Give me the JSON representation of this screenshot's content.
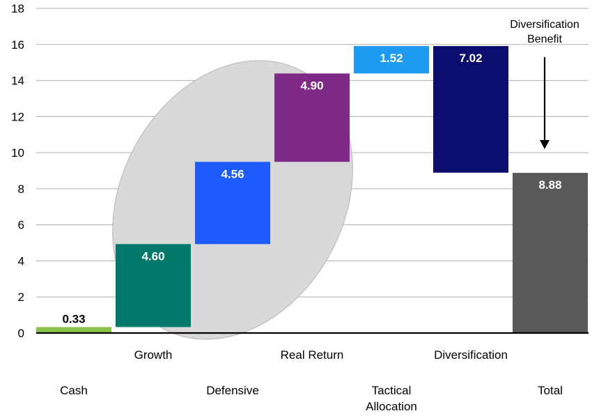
{
  "chart_data": {
    "type": "bar",
    "subtype": "waterfall",
    "title": "",
    "xlabel": "",
    "ylabel": "",
    "ylim": [
      0,
      18
    ],
    "yticks": [
      0,
      2,
      4,
      6,
      8,
      10,
      12,
      14,
      16,
      18
    ],
    "grid": true,
    "categories": [
      "Cash",
      "Growth",
      "Defensive",
      "Real Return",
      "Tactical Allocation",
      "Diversification",
      "Total"
    ],
    "category_label_row": [
      "lower",
      "upper",
      "lower",
      "upper",
      "lower",
      "upper",
      "lower"
    ],
    "bars": [
      {
        "category": "Cash",
        "start": 0,
        "end": 0.33,
        "label": "0.33",
        "color": "#8BC34A"
      },
      {
        "category": "Growth",
        "start": 0.33,
        "end": 4.93,
        "label": "4.60",
        "color": "#00796B"
      },
      {
        "category": "Defensive",
        "start": 4.93,
        "end": 9.49,
        "label": "4.56",
        "color": "#1E5BFF"
      },
      {
        "category": "Real Return",
        "start": 9.49,
        "end": 14.39,
        "label": "4.90",
        "color": "#7E2A86"
      },
      {
        "category": "Tactical Allocation",
        "start": 14.39,
        "end": 15.91,
        "label": "1.52",
        "color": "#1E9BF0"
      },
      {
        "category": "Diversification",
        "start": 15.91,
        "end": 8.89,
        "label": "7.02",
        "color": "#0B0E6E"
      },
      {
        "category": "Total",
        "start": 0,
        "end": 8.88,
        "label": "8.88",
        "color": "#595959"
      }
    ],
    "annotations": [
      {
        "text_lines": [
          "Diversification",
          "Benefit"
        ],
        "arrow": "down",
        "points_to": "Total"
      }
    ],
    "highlight_ellipse": {
      "spans": [
        "Growth",
        "Defensive",
        "Real Return"
      ],
      "color": "#D9D9D9"
    }
  }
}
